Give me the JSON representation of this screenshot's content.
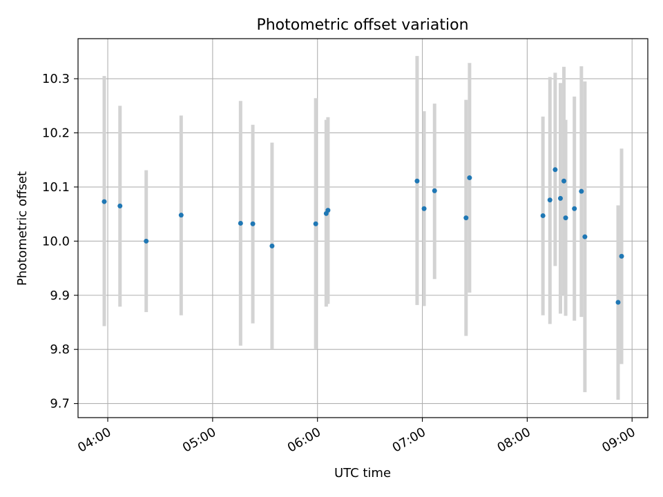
{
  "chart_data": {
    "type": "scatter",
    "title": "Photometric offset variation",
    "xlabel": "UTC time",
    "ylabel": "Photometric offset",
    "grid": true,
    "x_ticks": [
      "04:00",
      "05:00",
      "06:00",
      "07:00",
      "08:00",
      "09:00"
    ],
    "y_ticks": [
      "9.7",
      "9.8",
      "9.9",
      "10.0",
      "10.1",
      "10.2",
      "10.3"
    ],
    "xlim": [
      "03:43",
      "09:09"
    ],
    "ylim": [
      9.674,
      10.374
    ],
    "colors": {
      "points": "#1f77b4",
      "errorbars": "#d3d3d3",
      "grid": "#b0b0b0"
    },
    "points": [
      {
        "time": "03:58",
        "y": 10.073,
        "yerr_low": 9.843,
        "yerr_high": 10.305
      },
      {
        "time": "04:07",
        "y": 10.065,
        "yerr_low": 9.879,
        "yerr_high": 10.25
      },
      {
        "time": "04:22",
        "y": 10.0,
        "yerr_low": 9.869,
        "yerr_high": 10.131
      },
      {
        "time": "04:42",
        "y": 10.048,
        "yerr_low": 9.863,
        "yerr_high": 10.232
      },
      {
        "time": "05:16",
        "y": 10.033,
        "yerr_low": 9.807,
        "yerr_high": 10.259
      },
      {
        "time": "05:23",
        "y": 10.032,
        "yerr_low": 9.848,
        "yerr_high": 10.215
      },
      {
        "time": "05:34",
        "y": 9.991,
        "yerr_low": 9.8,
        "yerr_high": 10.182
      },
      {
        "time": "05:59",
        "y": 10.032,
        "yerr_low": 9.8,
        "yerr_high": 10.264
      },
      {
        "time": "06:05",
        "y": 10.051,
        "yerr_low": 9.879,
        "yerr_high": 10.224
      },
      {
        "time": "06:06",
        "y": 10.057,
        "yerr_low": 9.884,
        "yerr_high": 10.229
      },
      {
        "time": "06:57",
        "y": 10.111,
        "yerr_low": 9.882,
        "yerr_high": 10.342
      },
      {
        "time": "07:01",
        "y": 10.06,
        "yerr_low": 9.88,
        "yerr_high": 10.24
      },
      {
        "time": "07:07",
        "y": 10.093,
        "yerr_low": 9.93,
        "yerr_high": 10.254
      },
      {
        "time": "07:25",
        "y": 10.043,
        "yerr_low": 9.825,
        "yerr_high": 10.261
      },
      {
        "time": "07:27",
        "y": 10.117,
        "yerr_low": 9.905,
        "yerr_high": 10.329
      },
      {
        "time": "08:09",
        "y": 10.047,
        "yerr_low": 9.863,
        "yerr_high": 10.23
      },
      {
        "time": "08:13",
        "y": 10.076,
        "yerr_low": 9.847,
        "yerr_high": 10.303
      },
      {
        "time": "08:16",
        "y": 10.132,
        "yerr_low": 9.954,
        "yerr_high": 10.311
      },
      {
        "time": "08:19",
        "y": 10.079,
        "yerr_low": 9.866,
        "yerr_high": 10.292
      },
      {
        "time": "08:21",
        "y": 10.111,
        "yerr_low": 9.9,
        "yerr_high": 10.322
      },
      {
        "time": "08:22",
        "y": 10.043,
        "yerr_low": 9.862,
        "yerr_high": 10.224
      },
      {
        "time": "08:27",
        "y": 10.06,
        "yerr_low": 9.853,
        "yerr_high": 10.267
      },
      {
        "time": "08:31",
        "y": 10.092,
        "yerr_low": 9.86,
        "yerr_high": 10.323
      },
      {
        "time": "08:33",
        "y": 10.008,
        "yerr_low": 9.721,
        "yerr_high": 10.295
      },
      {
        "time": "08:52",
        "y": 9.887,
        "yerr_low": 9.707,
        "yerr_high": 10.066
      },
      {
        "time": "08:54",
        "y": 9.972,
        "yerr_low": 9.773,
        "yerr_high": 10.171
      }
    ]
  }
}
